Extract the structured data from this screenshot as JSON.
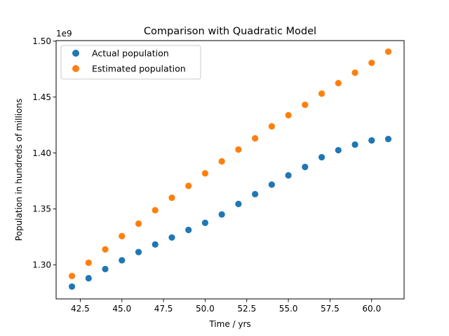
{
  "chart_data": {
    "type": "scatter",
    "title": "Comparison with Quadratic Model",
    "xlabel": "Time / yrs",
    "ylabel": "Population in hundreds of millions",
    "y_offset_label": "1e9",
    "xlim": [
      41.05,
      61.95
    ],
    "ylim": [
      1.2695,
      1.5005
    ],
    "x_ticks": [
      42.5,
      45.0,
      47.5,
      50.0,
      52.5,
      55.0,
      57.5,
      60.0
    ],
    "x_tick_labels": [
      "42.5",
      "45.0",
      "47.5",
      "50.0",
      "52.5",
      "55.0",
      "57.5",
      "60.0"
    ],
    "y_ticks": [
      1.3,
      1.35,
      1.4,
      1.45,
      1.5
    ],
    "y_tick_labels": [
      "1.30",
      "1.35",
      "1.40",
      "1.45",
      "1.50"
    ],
    "grid": false,
    "legend_position": "upper-left",
    "x": [
      42,
      43,
      44,
      45,
      46,
      47,
      48,
      49,
      50,
      51,
      52,
      53,
      54,
      55,
      56,
      57,
      58,
      59,
      60,
      61
    ],
    "series": [
      {
        "name": "Actual population",
        "color": "#1f77b4",
        "values": [
          1.2805,
          1.288,
          1.2962,
          1.304,
          1.3114,
          1.3182,
          1.3244,
          1.3312,
          1.3375,
          1.345,
          1.3544,
          1.3632,
          1.3717,
          1.38,
          1.3875,
          1.3962,
          1.4025,
          1.4075,
          1.4112,
          1.4125
        ]
      },
      {
        "name": "Estimated population",
        "color": "#ff7f0e",
        "values": [
          1.29,
          1.3018,
          1.3138,
          1.3256,
          1.3368,
          1.3488,
          1.36,
          1.3706,
          1.3818,
          1.3925,
          1.4031,
          1.4131,
          1.4238,
          1.4338,
          1.4431,
          1.4531,
          1.4625,
          1.4718,
          1.4806,
          1.4906
        ]
      }
    ]
  }
}
